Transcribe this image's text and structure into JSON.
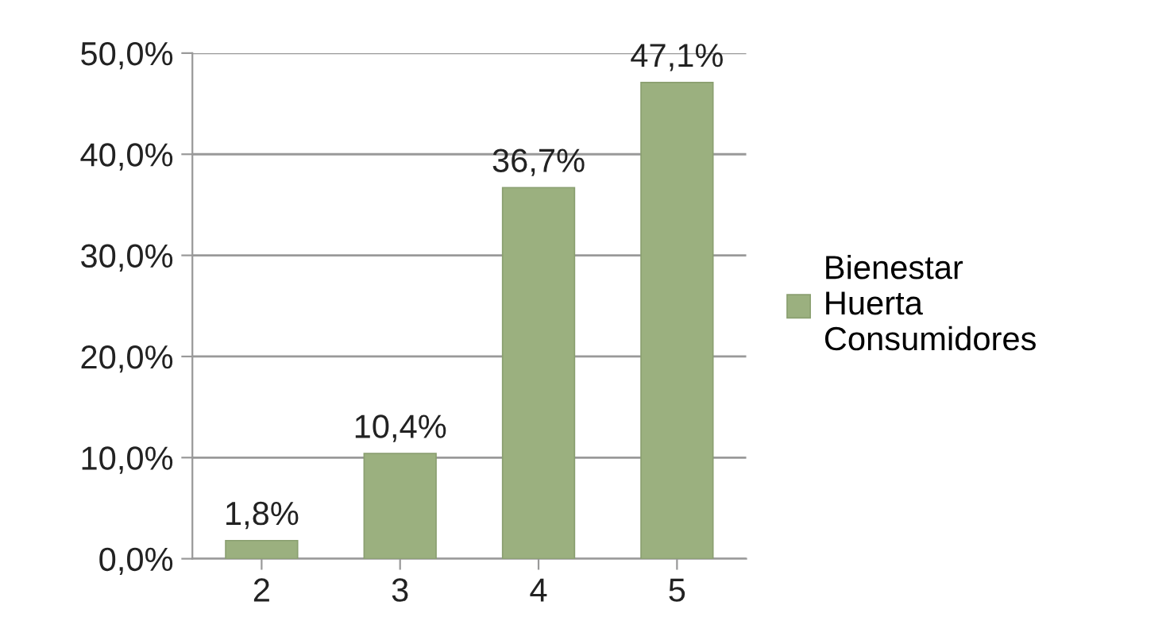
{
  "chart_data": {
    "type": "bar",
    "categories": [
      "2",
      "3",
      "4",
      "5"
    ],
    "series": [
      {
        "name": "Bienestar\nHuerta\nConsumidores",
        "color": "#9bb07f",
        "values": [
          1.8,
          10.4,
          36.7,
          47.1
        ],
        "value_labels": [
          "1,8%",
          "10,4%",
          "36,7%",
          "47,1%"
        ]
      }
    ],
    "ylim": [
      0,
      50
    ],
    "yticks": [
      {
        "value": 0,
        "label": "0,0%"
      },
      {
        "value": 10,
        "label": "10,0%"
      },
      {
        "value": 20,
        "label": "20,0%"
      },
      {
        "value": 30,
        "label": "30,0%"
      },
      {
        "value": 40,
        "label": "40,0%"
      },
      {
        "value": 50,
        "label": "50,0%"
      }
    ],
    "grid": "y",
    "legend": "right"
  }
}
